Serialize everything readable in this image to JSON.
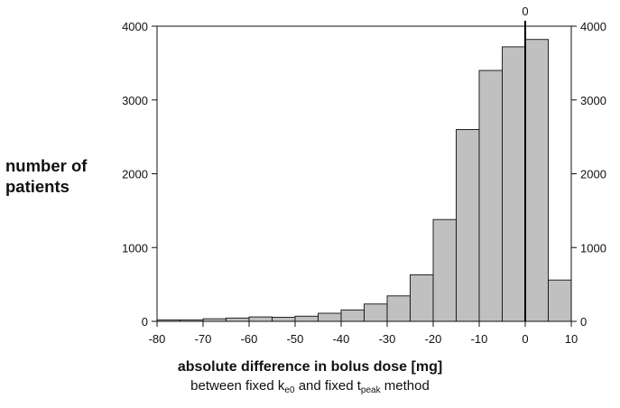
{
  "chart_data": {
    "type": "bar",
    "title": "",
    "bin_edges": [
      -80,
      -75,
      -70,
      -65,
      -60,
      -55,
      -50,
      -45,
      -40,
      -35,
      -30,
      -25,
      -20,
      -15,
      -10,
      -5,
      0,
      5,
      10
    ],
    "values": [
      20,
      20,
      35,
      45,
      60,
      55,
      70,
      110,
      155,
      235,
      345,
      630,
      1380,
      2600,
      3400,
      3720,
      3820,
      560
    ],
    "xlim": [
      -80,
      10
    ],
    "ylim": [
      0,
      4000
    ],
    "xticks": [
      -80,
      -70,
      -60,
      -50,
      -40,
      -30,
      -20,
      -10,
      0,
      10
    ],
    "yticks": [
      0,
      1000,
      2000,
      3000,
      4000
    ],
    "reference_line": {
      "x": 0,
      "label": "0"
    },
    "ylabel": "number of\npatients",
    "xlabel": "absolute difference in bolus dose [mg]",
    "xlabel_sub": {
      "part1": "between fixed k",
      "sub1": "e0",
      "part2": " and fixed t",
      "sub2": "peak",
      "part3": " method"
    },
    "bar_color": "#c0c0c0",
    "edge_color": "#111111",
    "grid": false
  }
}
